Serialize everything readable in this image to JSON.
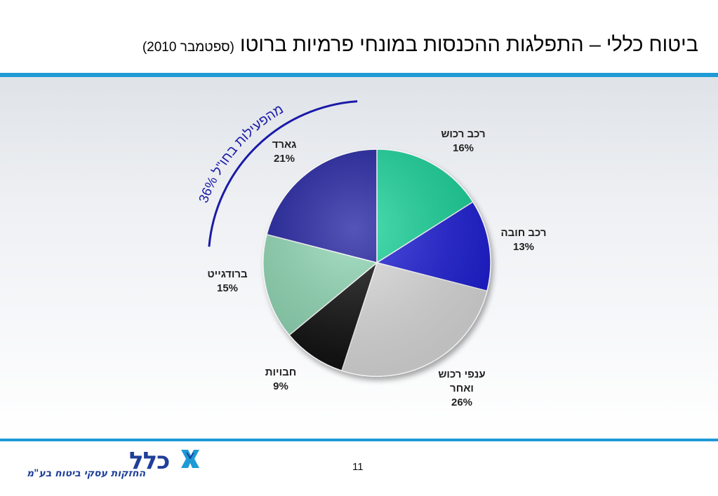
{
  "header": {
    "title": "ביטוח כללי – התפלגות ההכנסות במונחי פרמיות ברוטו",
    "subtitle": "(ספטמבר 2010)"
  },
  "chart_data": {
    "type": "pie",
    "slices": [
      {
        "label": "רכב רכוש",
        "value": 16,
        "value_label": "16%",
        "color": "#14d49a"
      },
      {
        "label": "רכב חובה",
        "value": 13,
        "value_label": "13%",
        "color": "#1a1ad8"
      },
      {
        "label": "ענפי רכוש ואחר",
        "label_lines": [
          "ענפי רכוש",
          "ואחר"
        ],
        "value": 26,
        "value_label": "26%",
        "color": "#dedede"
      },
      {
        "label": "חבויות",
        "value": 9,
        "value_label": "9%",
        "color": "#080808"
      },
      {
        "label": "ברודגייט",
        "value": 15,
        "value_label": "15%",
        "color": "#8fd8b4"
      },
      {
        "label": "גארד",
        "value": 21,
        "value_label": "21%",
        "color": "#1f1fa0"
      }
    ],
    "annotation": "36% מהפעילות בחו\"ל",
    "annotation_color": "#1a1aa8"
  },
  "footer": {
    "page_number": "11",
    "logo_text": "כלל",
    "logo_tagline": "החזקות עסקי ביטוח בע\"מ",
    "brand_color": "#1f3f99",
    "rule_color": "#1e9ad6"
  }
}
